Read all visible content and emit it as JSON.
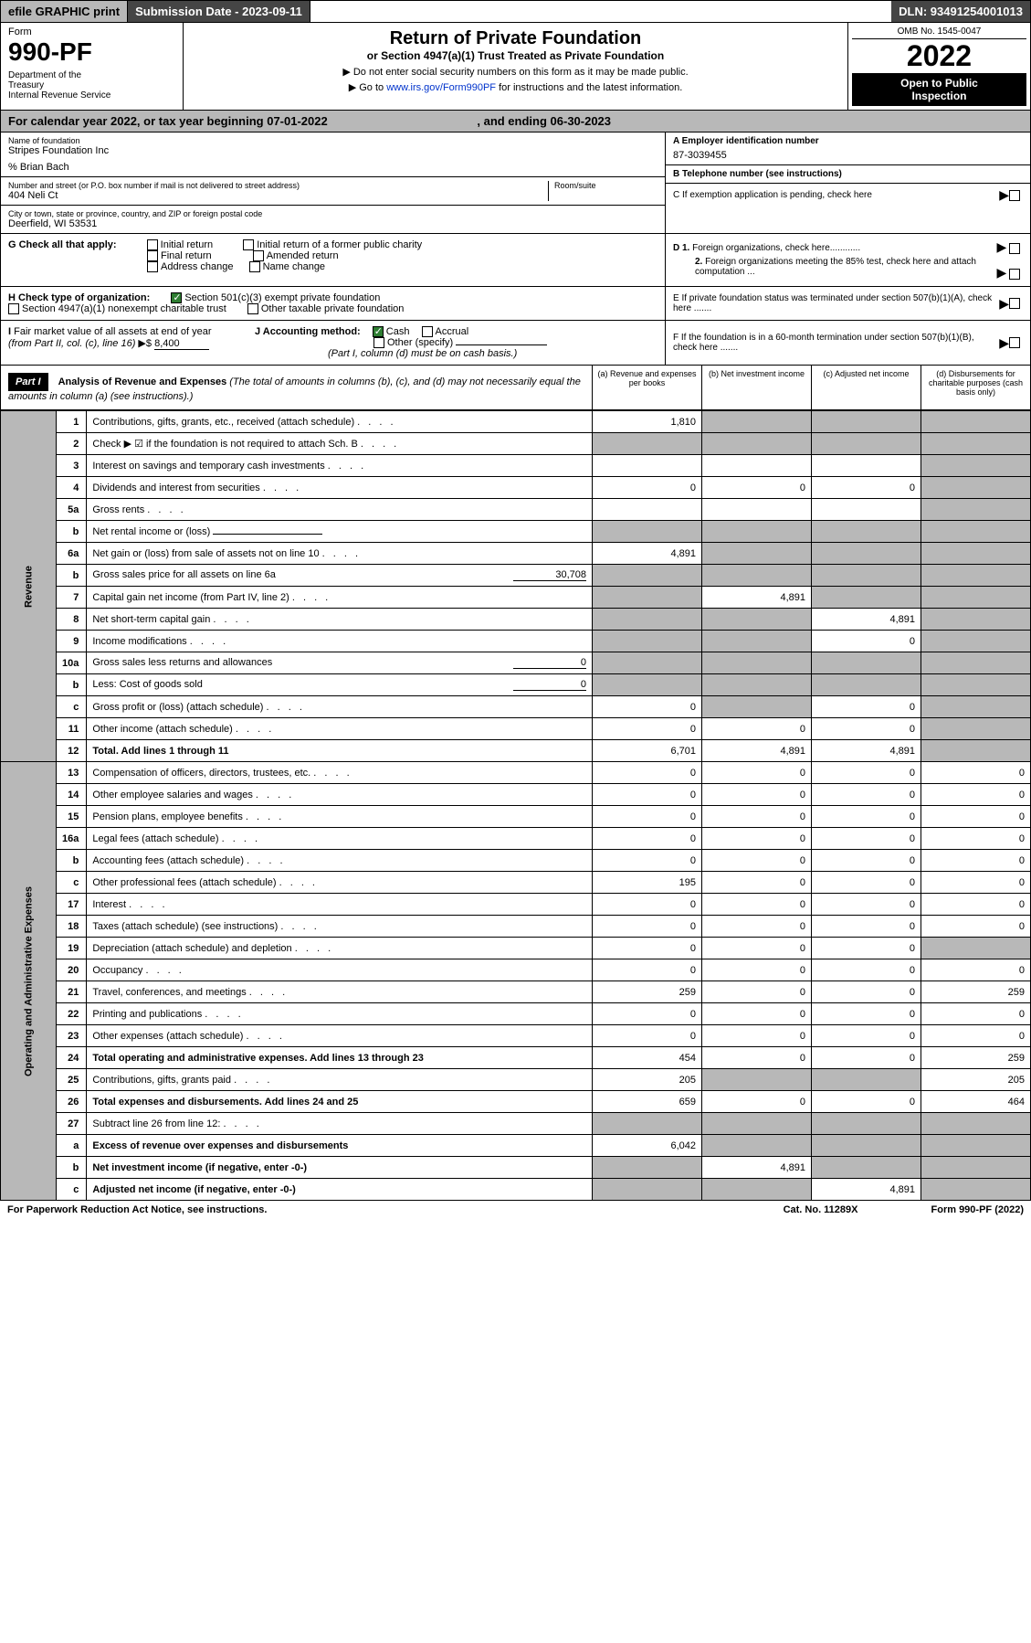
{
  "topbar": {
    "efile": "efile GRAPHIC print",
    "submission": "Submission Date - 2023-09-11",
    "dln": "DLN: 93491254001013"
  },
  "header": {
    "form_label": "Form",
    "form_number": "990-PF",
    "dept": "Department of the Treasury\nInternal Revenue Service",
    "title": "Return of Private Foundation",
    "subtitle": "or Section 4947(a)(1) Trust Treated as Private Foundation",
    "note1": "▶ Do not enter social security numbers on this form as it may be made public.",
    "note2": "▶ Go to www.irs.gov/Form990PF for instructions and the latest information.",
    "link": "www.irs.gov/Form990PF",
    "omb": "OMB No. 1545-0047",
    "year": "2022",
    "open": "Open to Public Inspection"
  },
  "calyear": {
    "text": "For calendar year 2022, or tax year beginning 07-01-2022",
    "ending": ", and ending 06-30-2023"
  },
  "foundation": {
    "name_label": "Name of foundation",
    "name": "Stripes Foundation Inc",
    "care_of": "% Brian Bach",
    "addr_label": "Number and street (or P.O. box number if mail is not delivered to street address)",
    "addr": "404 Neli Ct",
    "room_label": "Room/suite",
    "city_label": "City or town, state or province, country, and ZIP or foreign postal code",
    "city": "Deerfield, WI  53531"
  },
  "right_info": {
    "a_label": "A Employer identification number",
    "a_value": "87-3039455",
    "b_label": "B Telephone number (see instructions)",
    "c_label": "C If exemption application is pending, check here",
    "d1_label": "D 1. Foreign organizations, check here............",
    "d2_label": "2. Foreign organizations meeting the 85% test, check here and attach computation ...",
    "e_label": "E If private foundation status was terminated under section 507(b)(1)(A), check here .......",
    "f_label": "F If the foundation is in a 60-month termination under section 507(b)(1)(B), check here ......."
  },
  "checks": {
    "g_label": "G Check all that apply:",
    "g_opts": [
      "Initial return",
      "Initial return of a former public charity",
      "Final return",
      "Amended return",
      "Address change",
      "Name change"
    ],
    "h_label": "H Check type of organization:",
    "h_opts": [
      "Section 501(c)(3) exempt private foundation",
      "Section 4947(a)(1) nonexempt charitable trust",
      "Other taxable private foundation"
    ],
    "i_label": "I Fair market value of all assets at end of year (from Part II, col. (c), line 16)",
    "i_value": "8,400",
    "j_label": "J Accounting method:",
    "j_opts": [
      "Cash",
      "Accrual",
      "Other (specify)"
    ],
    "j_note": "(Part I, column (d) must be on cash basis.)",
    "check_note": "Check ▶ ☑ if the foundation is not required to attach Sch. B"
  },
  "part1": {
    "header": "Part I",
    "title": "Analysis of Revenue and Expenses",
    "desc": "(The total of amounts in columns (b), (c), and (d) may not necessarily equal the amounts in column (a) (see instructions).)",
    "cols": {
      "a": "(a) Revenue and expenses per books",
      "b": "(b) Net investment income",
      "c": "(c) Adjusted net income",
      "d": "(d) Disbursements for charitable purposes (cash basis only)"
    }
  },
  "sidelabels": {
    "revenue": "Revenue",
    "expenses": "Operating and Administrative Expenses"
  },
  "rows": [
    {
      "n": "1",
      "desc": "Contributions, gifts, grants, etc., received (attach schedule)",
      "a": "1,810",
      "b": "",
      "c": "",
      "d": "",
      "grey": [
        "b",
        "c",
        "d"
      ]
    },
    {
      "n": "2",
      "desc": "Check ▶ ☑ if the foundation is not required to attach Sch. B",
      "a": "",
      "b": "",
      "c": "",
      "d": "",
      "grey": [
        "a",
        "b",
        "c",
        "d"
      ]
    },
    {
      "n": "3",
      "desc": "Interest on savings and temporary cash investments",
      "a": "",
      "b": "",
      "c": "",
      "d": "",
      "grey": [
        "d"
      ]
    },
    {
      "n": "4",
      "desc": "Dividends and interest from securities",
      "a": "0",
      "b": "0",
      "c": "0",
      "d": "",
      "grey": [
        "d"
      ]
    },
    {
      "n": "5a",
      "desc": "Gross rents",
      "a": "",
      "b": "",
      "c": "",
      "d": "",
      "grey": [
        "d"
      ]
    },
    {
      "n": "b",
      "desc": "Net rental income or (loss)",
      "a": "",
      "b": "",
      "c": "",
      "d": "",
      "grey": [
        "a",
        "b",
        "c",
        "d"
      ],
      "miniInput": true
    },
    {
      "n": "6a",
      "desc": "Net gain or (loss) from sale of assets not on line 10",
      "a": "4,891",
      "b": "",
      "c": "",
      "d": "",
      "grey": [
        "b",
        "c",
        "d"
      ]
    },
    {
      "n": "b",
      "desc": "Gross sales price for all assets on line 6a",
      "a": "",
      "b": "",
      "c": "",
      "d": "",
      "grey": [
        "a",
        "b",
        "c",
        "d"
      ],
      "inlineVal": "30,708"
    },
    {
      "n": "7",
      "desc": "Capital gain net income (from Part IV, line 2)",
      "a": "",
      "b": "4,891",
      "c": "",
      "d": "",
      "grey": [
        "a",
        "c",
        "d"
      ]
    },
    {
      "n": "8",
      "desc": "Net short-term capital gain",
      "a": "",
      "b": "",
      "c": "4,891",
      "d": "",
      "grey": [
        "a",
        "b",
        "d"
      ]
    },
    {
      "n": "9",
      "desc": "Income modifications",
      "a": "",
      "b": "",
      "c": "0",
      "d": "",
      "grey": [
        "a",
        "b",
        "d"
      ]
    },
    {
      "n": "10a",
      "desc": "Gross sales less returns and allowances",
      "a": "",
      "b": "",
      "c": "",
      "d": "",
      "grey": [
        "a",
        "b",
        "c",
        "d"
      ],
      "inlineVal": "0"
    },
    {
      "n": "b",
      "desc": "Less: Cost of goods sold",
      "a": "",
      "b": "",
      "c": "",
      "d": "",
      "grey": [
        "a",
        "b",
        "c",
        "d"
      ],
      "inlineVal": "0"
    },
    {
      "n": "c",
      "desc": "Gross profit or (loss) (attach schedule)",
      "a": "0",
      "b": "",
      "c": "0",
      "d": "",
      "grey": [
        "b",
        "d"
      ]
    },
    {
      "n": "11",
      "desc": "Other income (attach schedule)",
      "a": "0",
      "b": "0",
      "c": "0",
      "d": "",
      "grey": [
        "d"
      ]
    },
    {
      "n": "12",
      "desc": "Total. Add lines 1 through 11",
      "a": "6,701",
      "b": "4,891",
      "c": "4,891",
      "d": "",
      "grey": [
        "d"
      ],
      "bold": true
    },
    {
      "n": "13",
      "desc": "Compensation of officers, directors, trustees, etc.",
      "a": "0",
      "b": "0",
      "c": "0",
      "d": "0"
    },
    {
      "n": "14",
      "desc": "Other employee salaries and wages",
      "a": "0",
      "b": "0",
      "c": "0",
      "d": "0"
    },
    {
      "n": "15",
      "desc": "Pension plans, employee benefits",
      "a": "0",
      "b": "0",
      "c": "0",
      "d": "0"
    },
    {
      "n": "16a",
      "desc": "Legal fees (attach schedule)",
      "a": "0",
      "b": "0",
      "c": "0",
      "d": "0"
    },
    {
      "n": "b",
      "desc": "Accounting fees (attach schedule)",
      "a": "0",
      "b": "0",
      "c": "0",
      "d": "0"
    },
    {
      "n": "c",
      "desc": "Other professional fees (attach schedule)",
      "a": "195",
      "b": "0",
      "c": "0",
      "d": "0"
    },
    {
      "n": "17",
      "desc": "Interest",
      "a": "0",
      "b": "0",
      "c": "0",
      "d": "0"
    },
    {
      "n": "18",
      "desc": "Taxes (attach schedule) (see instructions)",
      "a": "0",
      "b": "0",
      "c": "0",
      "d": "0"
    },
    {
      "n": "19",
      "desc": "Depreciation (attach schedule) and depletion",
      "a": "0",
      "b": "0",
      "c": "0",
      "d": "",
      "grey": [
        "d"
      ]
    },
    {
      "n": "20",
      "desc": "Occupancy",
      "a": "0",
      "b": "0",
      "c": "0",
      "d": "0"
    },
    {
      "n": "21",
      "desc": "Travel, conferences, and meetings",
      "a": "259",
      "b": "0",
      "c": "0",
      "d": "259"
    },
    {
      "n": "22",
      "desc": "Printing and publications",
      "a": "0",
      "b": "0",
      "c": "0",
      "d": "0"
    },
    {
      "n": "23",
      "desc": "Other expenses (attach schedule)",
      "a": "0",
      "b": "0",
      "c": "0",
      "d": "0"
    },
    {
      "n": "24",
      "desc": "Total operating and administrative expenses. Add lines 13 through 23",
      "a": "454",
      "b": "0",
      "c": "0",
      "d": "259",
      "bold": true
    },
    {
      "n": "25",
      "desc": "Contributions, gifts, grants paid",
      "a": "205",
      "b": "",
      "c": "",
      "d": "205",
      "grey": [
        "b",
        "c"
      ]
    },
    {
      "n": "26",
      "desc": "Total expenses and disbursements. Add lines 24 and 25",
      "a": "659",
      "b": "0",
      "c": "0",
      "d": "464",
      "bold": true
    },
    {
      "n": "27",
      "desc": "Subtract line 26 from line 12:",
      "a": "",
      "b": "",
      "c": "",
      "d": "",
      "grey": [
        "a",
        "b",
        "c",
        "d"
      ]
    },
    {
      "n": "a",
      "desc": "Excess of revenue over expenses and disbursements",
      "a": "6,042",
      "b": "",
      "c": "",
      "d": "",
      "grey": [
        "b",
        "c",
        "d"
      ],
      "bold": true
    },
    {
      "n": "b",
      "desc": "Net investment income (if negative, enter -0-)",
      "a": "",
      "b": "4,891",
      "c": "",
      "d": "",
      "grey": [
        "a",
        "c",
        "d"
      ],
      "bold": true
    },
    {
      "n": "c",
      "desc": "Adjusted net income (if negative, enter -0-)",
      "a": "",
      "b": "",
      "c": "4,891",
      "d": "",
      "grey": [
        "a",
        "b",
        "d"
      ],
      "bold": true
    }
  ],
  "footer": {
    "left": "For Paperwork Reduction Act Notice, see instructions.",
    "cat": "Cat. No. 11289X",
    "right": "Form 990-PF (2022)"
  },
  "colors": {
    "darkgrey": "#454545",
    "lightgrey": "#b8b8b8",
    "link": "#0033cc",
    "green": "#2e7d32"
  }
}
